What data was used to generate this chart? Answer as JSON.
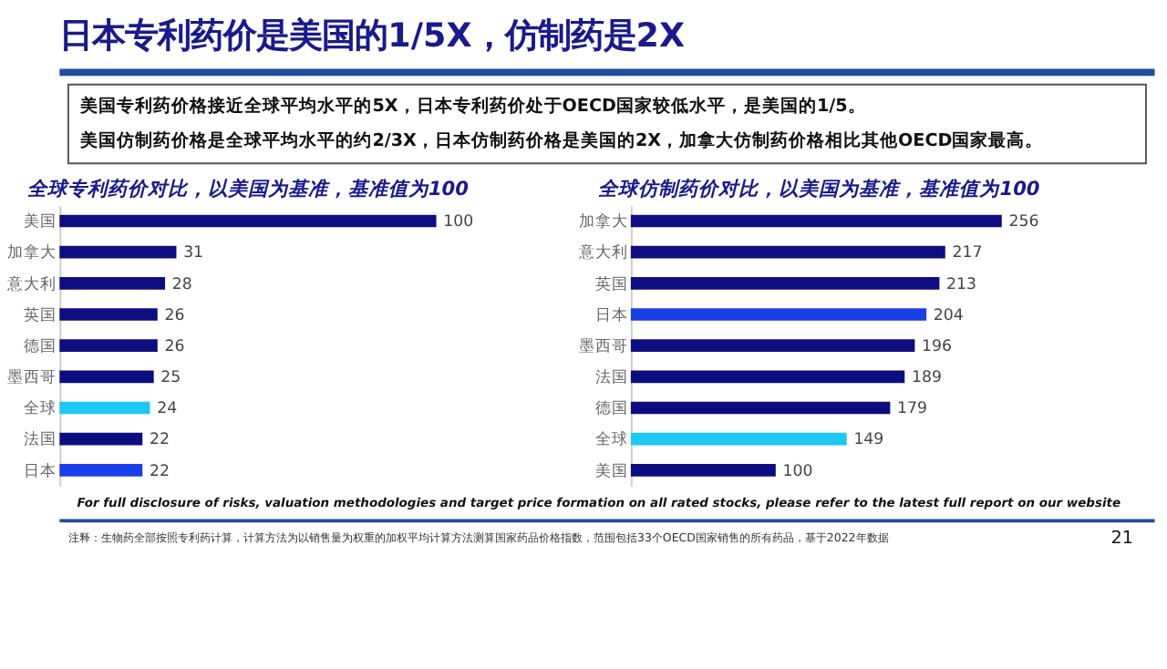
{
  "chart_data": [
    {
      "type": "other",
      "title": "日本专利药价是美国的1/5X，仿制药是2X",
      "annotations": [
        "美国专利药价格接近全球平均水平的5X，日本专利药价处于OECD国家较低水平，是美国的1/5。",
        "美国仿制药价格是全球平均水平的约2/3X，日本仿制药价格是美国的2X，加拿大仿制药价格相比其他OECD国家最高。"
      ]
    },
    {
      "type": "bar",
      "orientation": "horizontal",
      "title": "全球专利药价对比，以美国为基准，基准值为100",
      "categories": [
        "美国",
        "加拿大",
        "意大利",
        "英国",
        "德国",
        "墨西哥",
        "全球",
        "法国",
        "日本"
      ],
      "values": [
        100,
        31,
        28,
        26,
        26,
        25,
        24,
        22,
        22
      ],
      "colors": [
        "#0d0d80",
        "#0d0d80",
        "#0d0d80",
        "#0d0d80",
        "#0d0d80",
        "#0d0d80",
        "#1ec8f0",
        "#0d0d80",
        "#1a3ee6"
      ],
      "data_labels": true,
      "tick_labels": "y"
    },
    {
      "type": "bar",
      "orientation": "horizontal",
      "title": "全球仿制药价对比，以美国为基准，基准值为100",
      "categories": [
        "加拿大",
        "意大利",
        "英国",
        "日本",
        "墨西哥",
        "法国",
        "德国",
        "全球",
        "美国"
      ],
      "values": [
        256,
        217,
        213,
        204,
        196,
        189,
        179,
        149,
        100
      ],
      "colors": [
        "#0d0d80",
        "#0d0d80",
        "#0d0d80",
        "#1a3ee6",
        "#0d0d80",
        "#0d0d80",
        "#0d0d80",
        "#1ec8f0",
        "#0d0d80"
      ],
      "data_labels": true,
      "tick_labels": "y",
      "annotations": [
        "For full disclosure of risks, valuation methodologies and target price formation on all rated stocks, please refer to the latest full report on our website",
        "注释：生物药全部按照专利药计算，计算方法为以销售量为权重的加权平均计算方法测算国家药品价格指数，范围包括33个OECD国家销售的所有药品，基于2022年数据",
        "21"
      ]
    }
  ]
}
